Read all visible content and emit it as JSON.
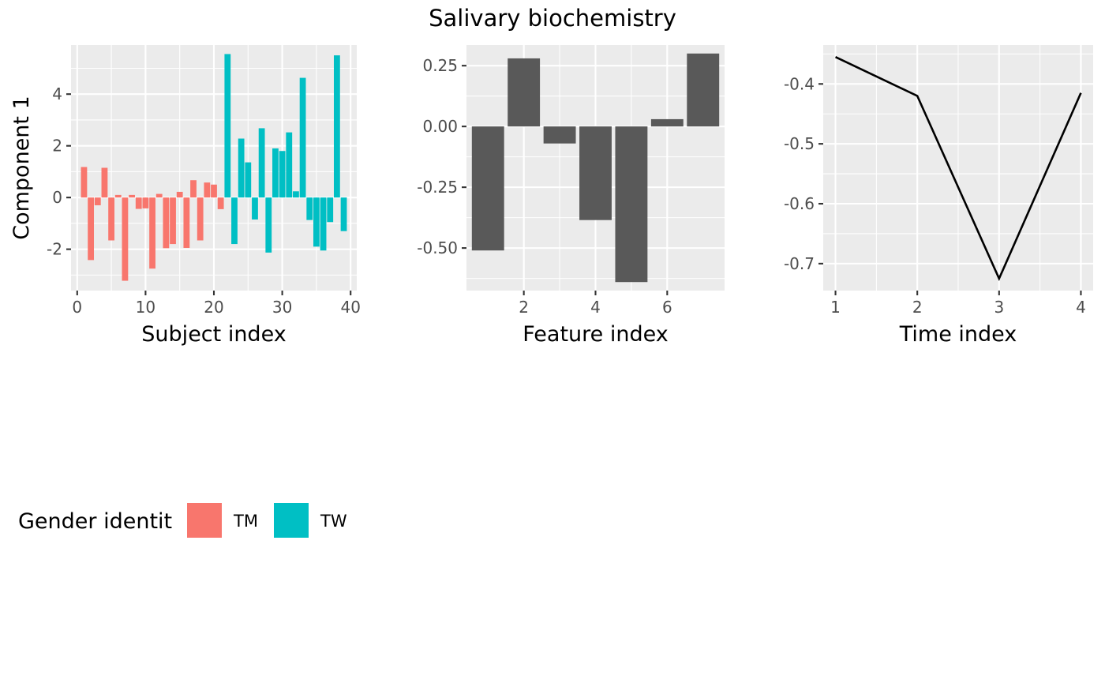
{
  "figure": {
    "title": "Salivary biochemistry"
  },
  "legend": {
    "title": "Gender identit",
    "items": [
      {
        "label": "TM",
        "color": "#F8766D"
      },
      {
        "label": "TW",
        "color": "#00BFC4"
      }
    ]
  },
  "chart_data": [
    {
      "type": "bar",
      "xlabel": "Subject index",
      "ylabel": "Component 1",
      "xlim": [
        -0.9,
        40.9
      ],
      "ylim": [
        -3.6,
        5.9
      ],
      "xticks": [
        0,
        10,
        20,
        30,
        40
      ],
      "yticks": [
        -2,
        0,
        2,
        4
      ],
      "grid": true,
      "legend": "bottom-left",
      "series": [
        {
          "name": "TM",
          "color": "#F8766D",
          "x": [
            1,
            2,
            3,
            4,
            5,
            6,
            7,
            8,
            9,
            10,
            11,
            12,
            13,
            14,
            15,
            16,
            17,
            18,
            19,
            20,
            21
          ],
          "values": [
            1.18,
            -2.42,
            -0.3,
            1.15,
            -1.66,
            0.1,
            -3.22,
            0.1,
            -0.44,
            -0.42,
            -2.75,
            0.14,
            -1.96,
            -1.8,
            0.22,
            -1.95,
            0.67,
            -1.66,
            0.58,
            0.5,
            -0.45
          ]
        },
        {
          "name": "TW",
          "color": "#00BFC4",
          "x": [
            22,
            23,
            24,
            25,
            26,
            27,
            28,
            29,
            30,
            31,
            32,
            33,
            34,
            35,
            36,
            37,
            38,
            39
          ],
          "values": [
            5.55,
            -1.8,
            2.28,
            1.36,
            -0.85,
            2.68,
            -2.13,
            1.9,
            1.8,
            2.52,
            0.24,
            4.63,
            -0.87,
            -1.9,
            -2.05,
            -0.95,
            5.5,
            -1.3
          ]
        }
      ]
    },
    {
      "type": "bar",
      "xlabel": "Feature index",
      "ylabel": "",
      "xlim": [
        0.4,
        7.6
      ],
      "ylim": [
        -0.675,
        0.335
      ],
      "xticks": [
        2,
        4,
        6
      ],
      "yticks": [
        0.25,
        0.0,
        -0.25,
        -0.5
      ],
      "ytick_labels": [
        "0.25",
        "0.00",
        "-0.25",
        "-0.50"
      ],
      "grid": true,
      "color": "#595959",
      "categories": [
        1,
        2,
        3,
        4,
        5,
        6,
        7
      ],
      "values": [
        -0.51,
        0.28,
        -0.07,
        -0.385,
        -0.64,
        0.03,
        0.3
      ]
    },
    {
      "type": "line",
      "xlabel": "Time index",
      "ylabel": "",
      "xlim": [
        0.85,
        4.15
      ],
      "ylim": [
        -0.745,
        -0.335
      ],
      "xticks": [
        1,
        2,
        3,
        4
      ],
      "yticks": [
        -0.4,
        -0.5,
        -0.6,
        -0.7
      ],
      "grid": true,
      "color": "#000000",
      "x": [
        1,
        2,
        3,
        4
      ],
      "y": [
        -0.355,
        -0.42,
        -0.725,
        -0.415
      ]
    }
  ]
}
